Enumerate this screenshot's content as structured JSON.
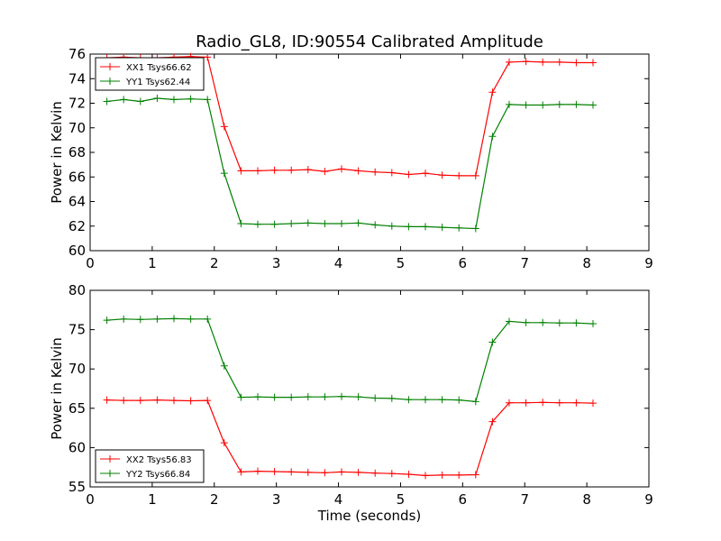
{
  "chart_data": [
    {
      "type": "line",
      "title": "Radio_GL8, ID:90554 Calibrated Amplitude",
      "xlabel": "",
      "ylabel": "Power in Kelvin",
      "xlim": [
        0,
        9
      ],
      "ylim": [
        60,
        76
      ],
      "xticks": [
        "0",
        "1",
        "2",
        "3",
        "4",
        "5",
        "6",
        "7",
        "8",
        "9"
      ],
      "yticks": [
        "60",
        "62",
        "64",
        "66",
        "68",
        "70",
        "72",
        "74",
        "76"
      ],
      "grid": false,
      "legend_position": "upper-left",
      "x": [
        0.27,
        0.54,
        0.81,
        1.08,
        1.35,
        1.62,
        1.89,
        2.16,
        2.43,
        2.7,
        2.97,
        3.24,
        3.51,
        3.78,
        4.05,
        4.32,
        4.59,
        4.86,
        5.13,
        5.4,
        5.67,
        5.94,
        6.21,
        6.48,
        6.75,
        7.02,
        7.29,
        7.56,
        7.83,
        8.1
      ],
      "series": [
        {
          "name": "XX1 Tsys66.62",
          "color": "#ff0000",
          "values": [
            75.7,
            75.75,
            75.7,
            75.7,
            75.75,
            75.8,
            75.75,
            70.1,
            66.5,
            66.5,
            66.55,
            66.55,
            66.6,
            66.45,
            66.65,
            66.5,
            66.4,
            66.35,
            66.2,
            66.3,
            66.15,
            66.1,
            66.1,
            72.9,
            75.35,
            75.4,
            75.35,
            75.35,
            75.3,
            75.3
          ]
        },
        {
          "name": "YY1 Tsys62.44",
          "color": "#008000",
          "values": [
            72.15,
            72.3,
            72.15,
            72.4,
            72.3,
            72.35,
            72.3,
            66.3,
            62.2,
            62.15,
            62.15,
            62.2,
            62.25,
            62.2,
            62.2,
            62.25,
            62.1,
            62.0,
            61.95,
            61.95,
            61.9,
            61.85,
            61.8,
            69.3,
            71.9,
            71.85,
            71.85,
            71.9,
            71.9,
            71.85
          ]
        }
      ]
    },
    {
      "type": "line",
      "title": "",
      "xlabel": "Time (seconds)",
      "ylabel": "Power in Kelvin",
      "xlim": [
        0,
        9
      ],
      "ylim": [
        55,
        80
      ],
      "xticks": [
        "0",
        "1",
        "2",
        "3",
        "4",
        "5",
        "6",
        "7",
        "8",
        "9"
      ],
      "yticks": [
        "55",
        "60",
        "65",
        "70",
        "75",
        "80"
      ],
      "grid": false,
      "legend_position": "lower-left",
      "x": [
        0.27,
        0.54,
        0.81,
        1.08,
        1.35,
        1.62,
        1.89,
        2.16,
        2.43,
        2.7,
        2.97,
        3.24,
        3.51,
        3.78,
        4.05,
        4.32,
        4.59,
        4.86,
        5.13,
        5.4,
        5.67,
        5.94,
        6.21,
        6.48,
        6.75,
        7.02,
        7.29,
        7.56,
        7.83,
        8.1
      ],
      "series": [
        {
          "name": "XX2 Tsys56.83",
          "color": "#ff0000",
          "values": [
            66.05,
            66.0,
            66.0,
            66.05,
            66.0,
            65.95,
            66.0,
            60.6,
            56.9,
            57.0,
            56.95,
            56.9,
            56.85,
            56.8,
            56.9,
            56.85,
            56.75,
            56.7,
            56.6,
            56.45,
            56.5,
            56.5,
            56.55,
            63.3,
            65.7,
            65.7,
            65.75,
            65.7,
            65.7,
            65.65
          ]
        },
        {
          "name": "YY2 Tsys66.84",
          "color": "#008000",
          "values": [
            76.2,
            76.35,
            76.3,
            76.35,
            76.4,
            76.35,
            76.35,
            70.4,
            66.4,
            66.45,
            66.4,
            66.4,
            66.45,
            66.45,
            66.5,
            66.45,
            66.3,
            66.25,
            66.1,
            66.1,
            66.1,
            66.05,
            65.85,
            73.4,
            76.05,
            75.9,
            75.9,
            75.85,
            75.85,
            75.75
          ]
        }
      ]
    }
  ]
}
